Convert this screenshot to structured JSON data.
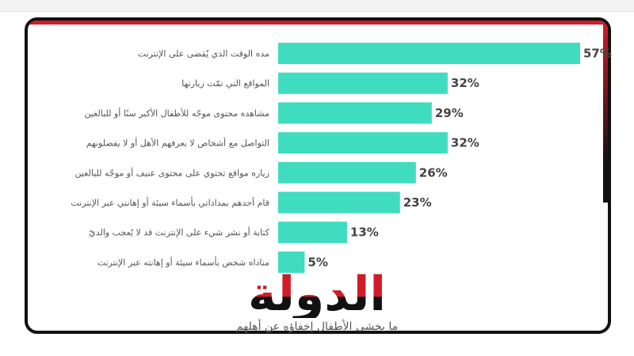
{
  "chart_data": {
    "type": "bar",
    "orientation": "horizontal",
    "categories": [
      "مده الوقت الذي يُقضى على الإنترنت",
      "المواقع التي تمّت زيارتها",
      "مشاهده محتوى موجّه للأطفال الأكبر سنًا أو للبالغين",
      "التواصل مع أشخاص لا يعرفهم الأهل أو لا يفضلونهم",
      "زياره مواقع تحتوي على محتوى عنيف أو موجّه للبالغين",
      "قام أحدهم بمداداتي بأسماء سيئة أو إهانتي عبر الإنترنت",
      "كتابة أو نشر شيء على الإنترنت قد لا يُعجب والديّ",
      "مناداه شخص بأسماء سيئة أو إهانته عبر الإنترنت"
    ],
    "values": [
      57,
      32,
      29,
      32,
      26,
      23,
      13,
      5
    ],
    "value_labels": [
      "57%",
      "32%",
      "29%",
      "32%",
      "26%",
      "23%",
      "13%",
      "5%"
    ],
    "unit": "%",
    "xlim": [
      0,
      57
    ],
    "bar_color": "#3fdcc0",
    "grid": false,
    "legend": "none"
  },
  "logo": {
    "text": "الدولة",
    "color_top": "#d01c2a",
    "color_bottom": "#111111"
  },
  "caption": "ما يخشى الأطفال إخفاؤه عن أهلهم"
}
